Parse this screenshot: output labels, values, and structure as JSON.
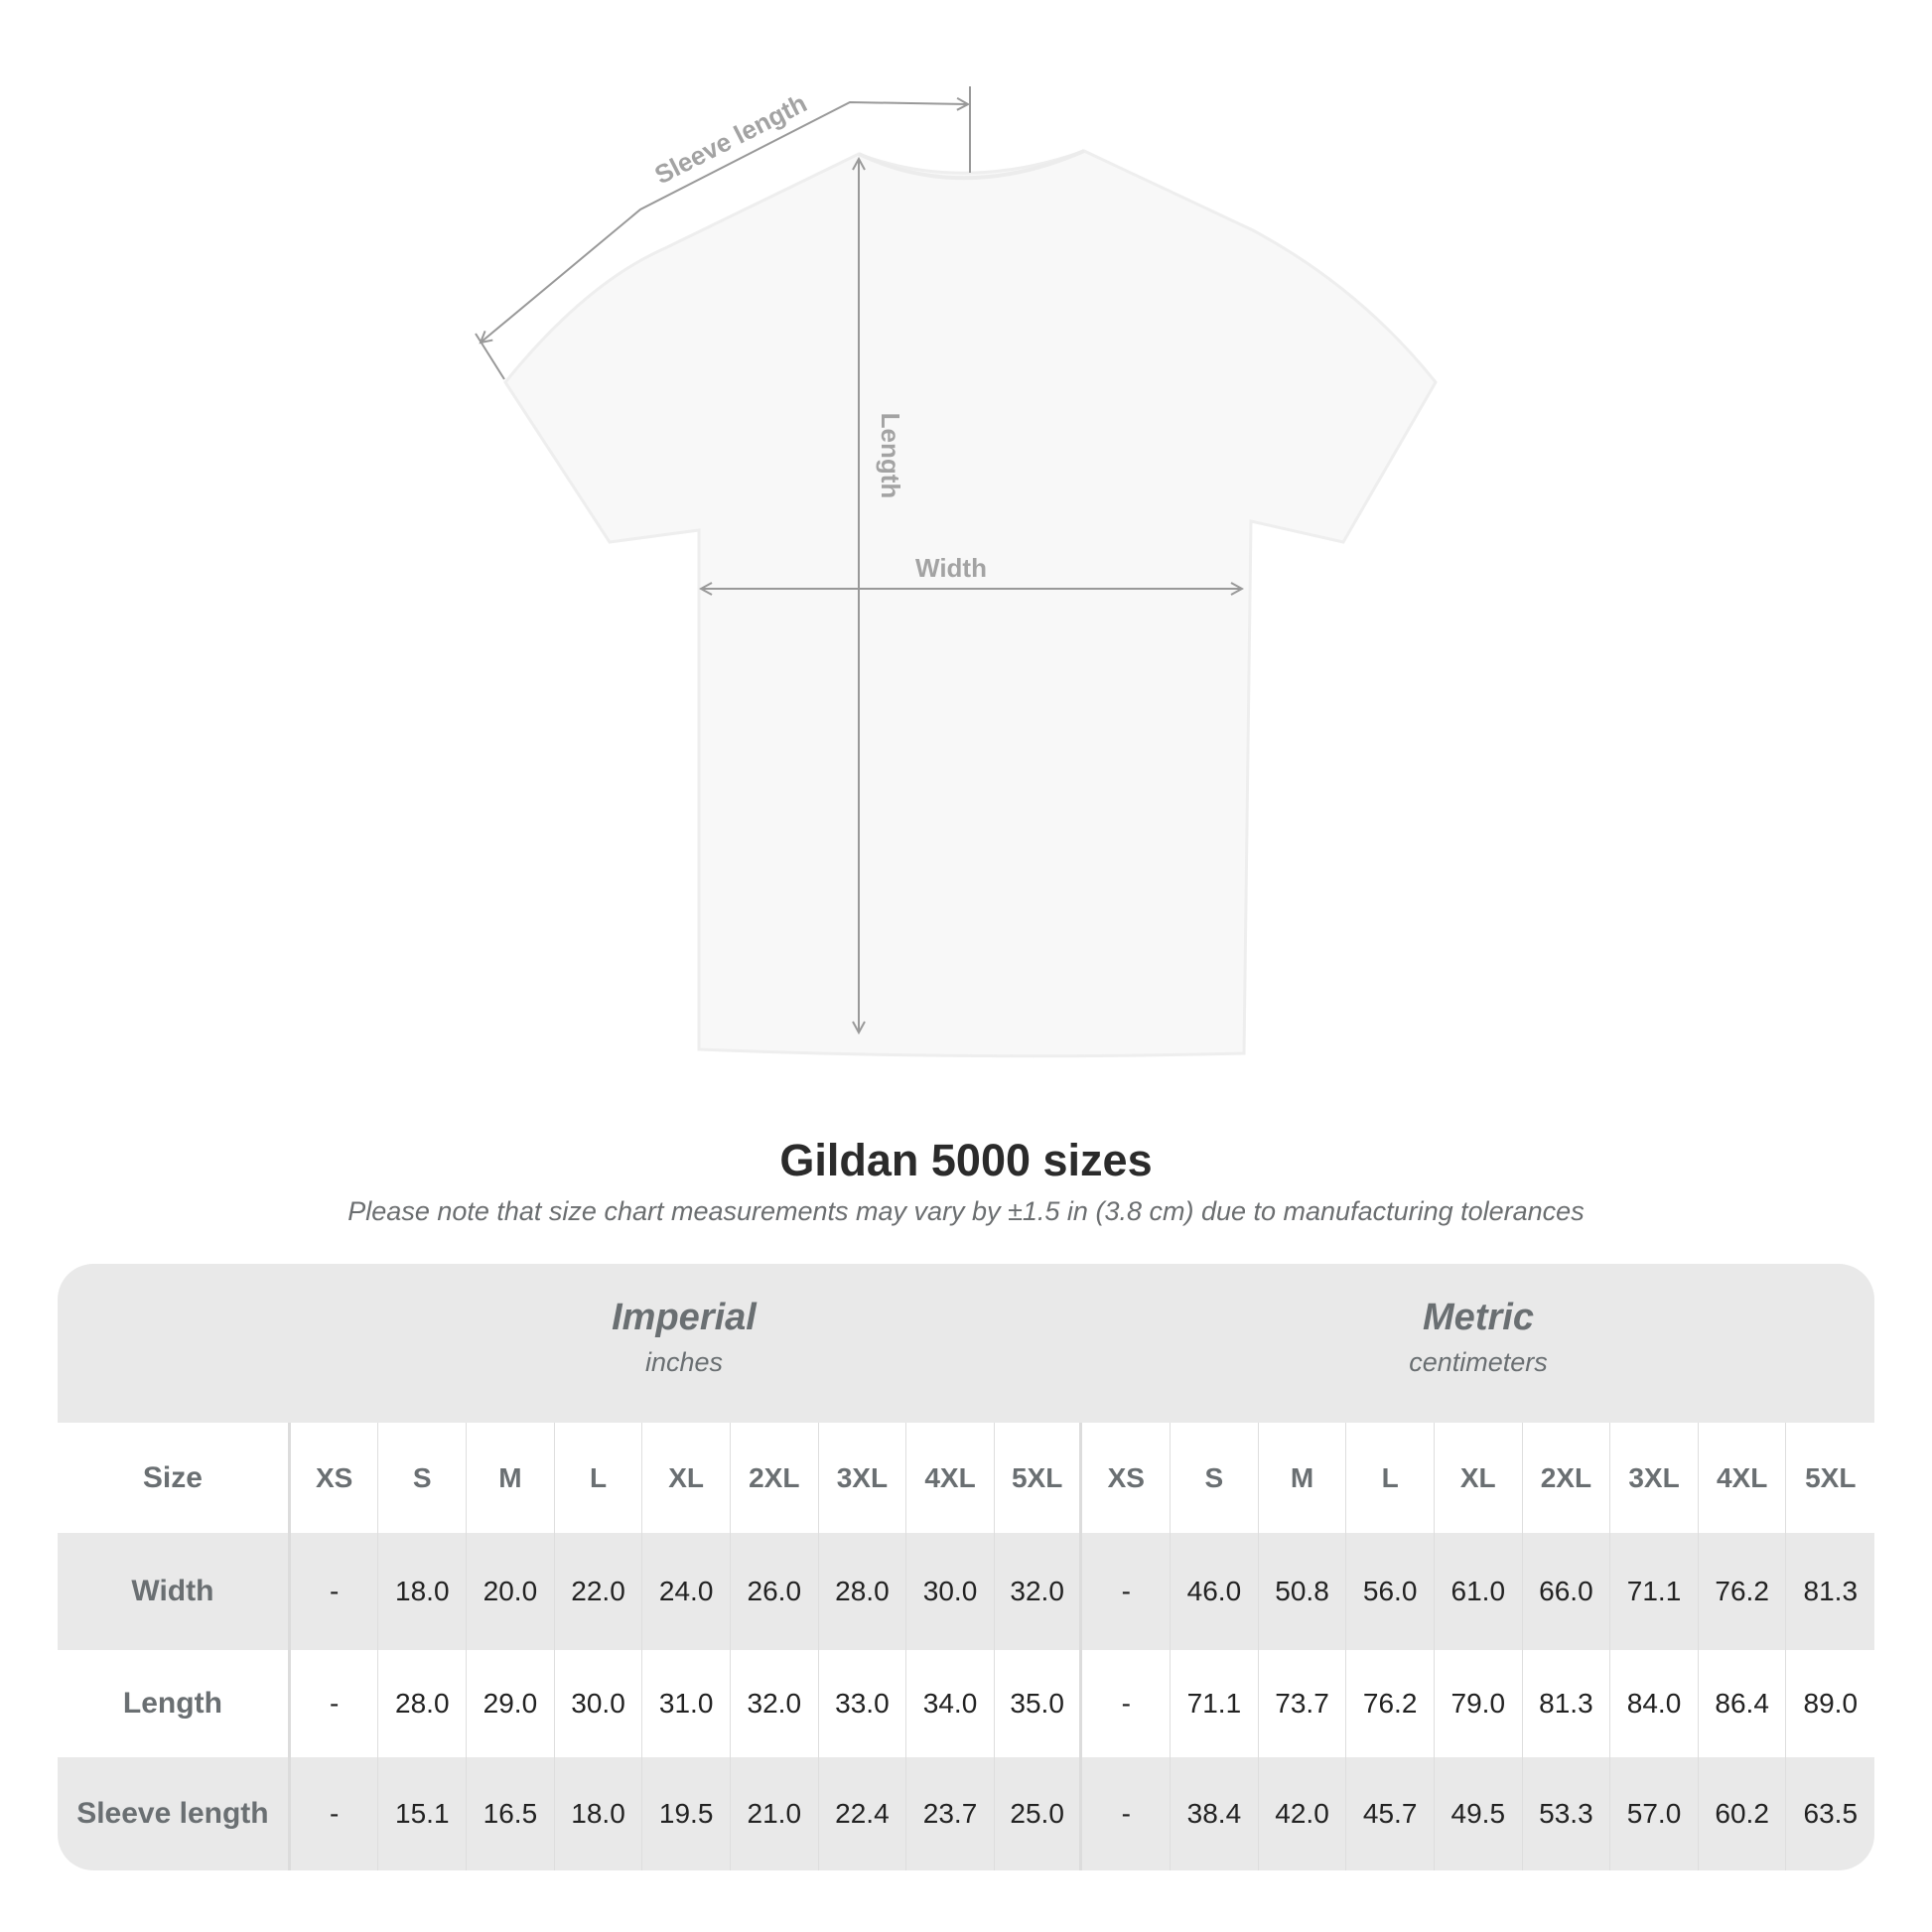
{
  "diagram": {
    "labels": {
      "sleeve": "Sleeve length",
      "length": "Length",
      "width": "Width"
    },
    "line_color": "#999999"
  },
  "title": "Gildan 5000 sizes",
  "note": "Please note that size chart measurements may vary by ±1.5 in (3.8 cm) due to manufacturing tolerances",
  "table": {
    "imperial": {
      "name": "Imperial",
      "unit": "inches"
    },
    "metric": {
      "name": "Metric",
      "unit": "centimeters"
    },
    "size_label": "Size",
    "sizes": [
      "XS",
      "S",
      "M",
      "L",
      "XL",
      "2XL",
      "3XL",
      "4XL",
      "5XL"
    ],
    "rows": [
      {
        "label": "Width",
        "imperial": [
          "-",
          "18.0",
          "20.0",
          "22.0",
          "24.0",
          "26.0",
          "28.0",
          "30.0",
          "32.0"
        ],
        "metric": [
          "-",
          "46.0",
          "50.8",
          "56.0",
          "61.0",
          "66.0",
          "71.1",
          "76.2",
          "81.3"
        ]
      },
      {
        "label": "Length",
        "imperial": [
          "-",
          "28.0",
          "29.0",
          "30.0",
          "31.0",
          "32.0",
          "33.0",
          "34.0",
          "35.0"
        ],
        "metric": [
          "-",
          "71.1",
          "73.7",
          "76.2",
          "79.0",
          "81.3",
          "84.0",
          "86.4",
          "89.0"
        ]
      },
      {
        "label": "Sleeve length",
        "imperial": [
          "-",
          "15.1",
          "16.5",
          "18.0",
          "19.5",
          "21.0",
          "22.4",
          "23.7",
          "25.0"
        ],
        "metric": [
          "-",
          "38.4",
          "42.0",
          "45.7",
          "49.5",
          "53.3",
          "57.0",
          "60.2",
          "63.5"
        ]
      }
    ],
    "colors": {
      "header_bg": "#e9e9e9",
      "label_text": "#6a6f72",
      "value_text": "#222222"
    }
  }
}
